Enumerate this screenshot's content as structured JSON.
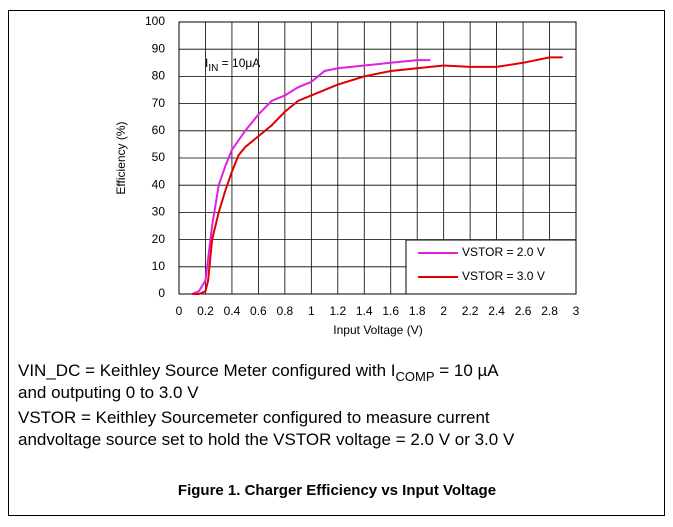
{
  "chart_data": {
    "type": "line",
    "xlabel": "Input Voltage (V)",
    "ylabel": "Efficiency (%)",
    "annotation": [
      "I",
      "IN",
      " = 10μA"
    ],
    "xlim": [
      0,
      3
    ],
    "xticks": [
      0,
      0.2,
      0.4,
      0.6,
      0.8,
      1,
      1.2,
      1.4,
      1.6,
      1.8,
      2,
      2.2,
      2.4,
      2.6,
      2.8,
      3
    ],
    "ylim": [
      0,
      100
    ],
    "yticks": [
      0,
      10,
      20,
      30,
      40,
      50,
      60,
      70,
      80,
      90,
      100
    ],
    "grid": true,
    "legend": "lower right",
    "series": [
      {
        "name": "VSTOR = 2.0 V",
        "color": "#e020e0",
        "x": [
          0.1,
          0.15,
          0.2,
          0.25,
          0.3,
          0.35,
          0.4,
          0.5,
          0.6,
          0.7,
          0.8,
          0.9,
          1.0,
          1.1,
          1.2,
          1.4,
          1.6,
          1.8,
          1.9
        ],
        "values": [
          0,
          1,
          5,
          25,
          40,
          47,
          53,
          60,
          66,
          71,
          73,
          76,
          78,
          82,
          83,
          84,
          85,
          86,
          86
        ]
      },
      {
        "name": "VSTOR = 3.0 V",
        "color": "#e00000",
        "x": [
          0.1,
          0.15,
          0.2,
          0.22,
          0.25,
          0.3,
          0.35,
          0.4,
          0.45,
          0.5,
          0.6,
          0.7,
          0.8,
          0.9,
          1.0,
          1.2,
          1.4,
          1.6,
          1.8,
          2.0,
          2.2,
          2.4,
          2.6,
          2.8,
          2.9
        ],
        "values": [
          0,
          0,
          1,
          5,
          20,
          30,
          38,
          45,
          51,
          54,
          58,
          62,
          67,
          71,
          73,
          77,
          80,
          82,
          83,
          84,
          83.5,
          83.5,
          85,
          87,
          87
        ]
      }
    ]
  },
  "notes": [
    {
      "lines": [
        [
          "VIN_DC = Keithley Source Meter configured with I",
          "COMP",
          " = 10 µA"
        ],
        [
          "and outputing 0 to 3.0 V"
        ]
      ]
    },
    {
      "lines": [
        [
          "VSTOR = Keithley Sourcemeter configured to measure current"
        ],
        [
          "andvoltage source set to hold the VSTOR voltage = 2.0 V or 3.0 V"
        ]
      ]
    }
  ],
  "caption": "Figure 1. Charger Efficiency vs Input Voltage"
}
